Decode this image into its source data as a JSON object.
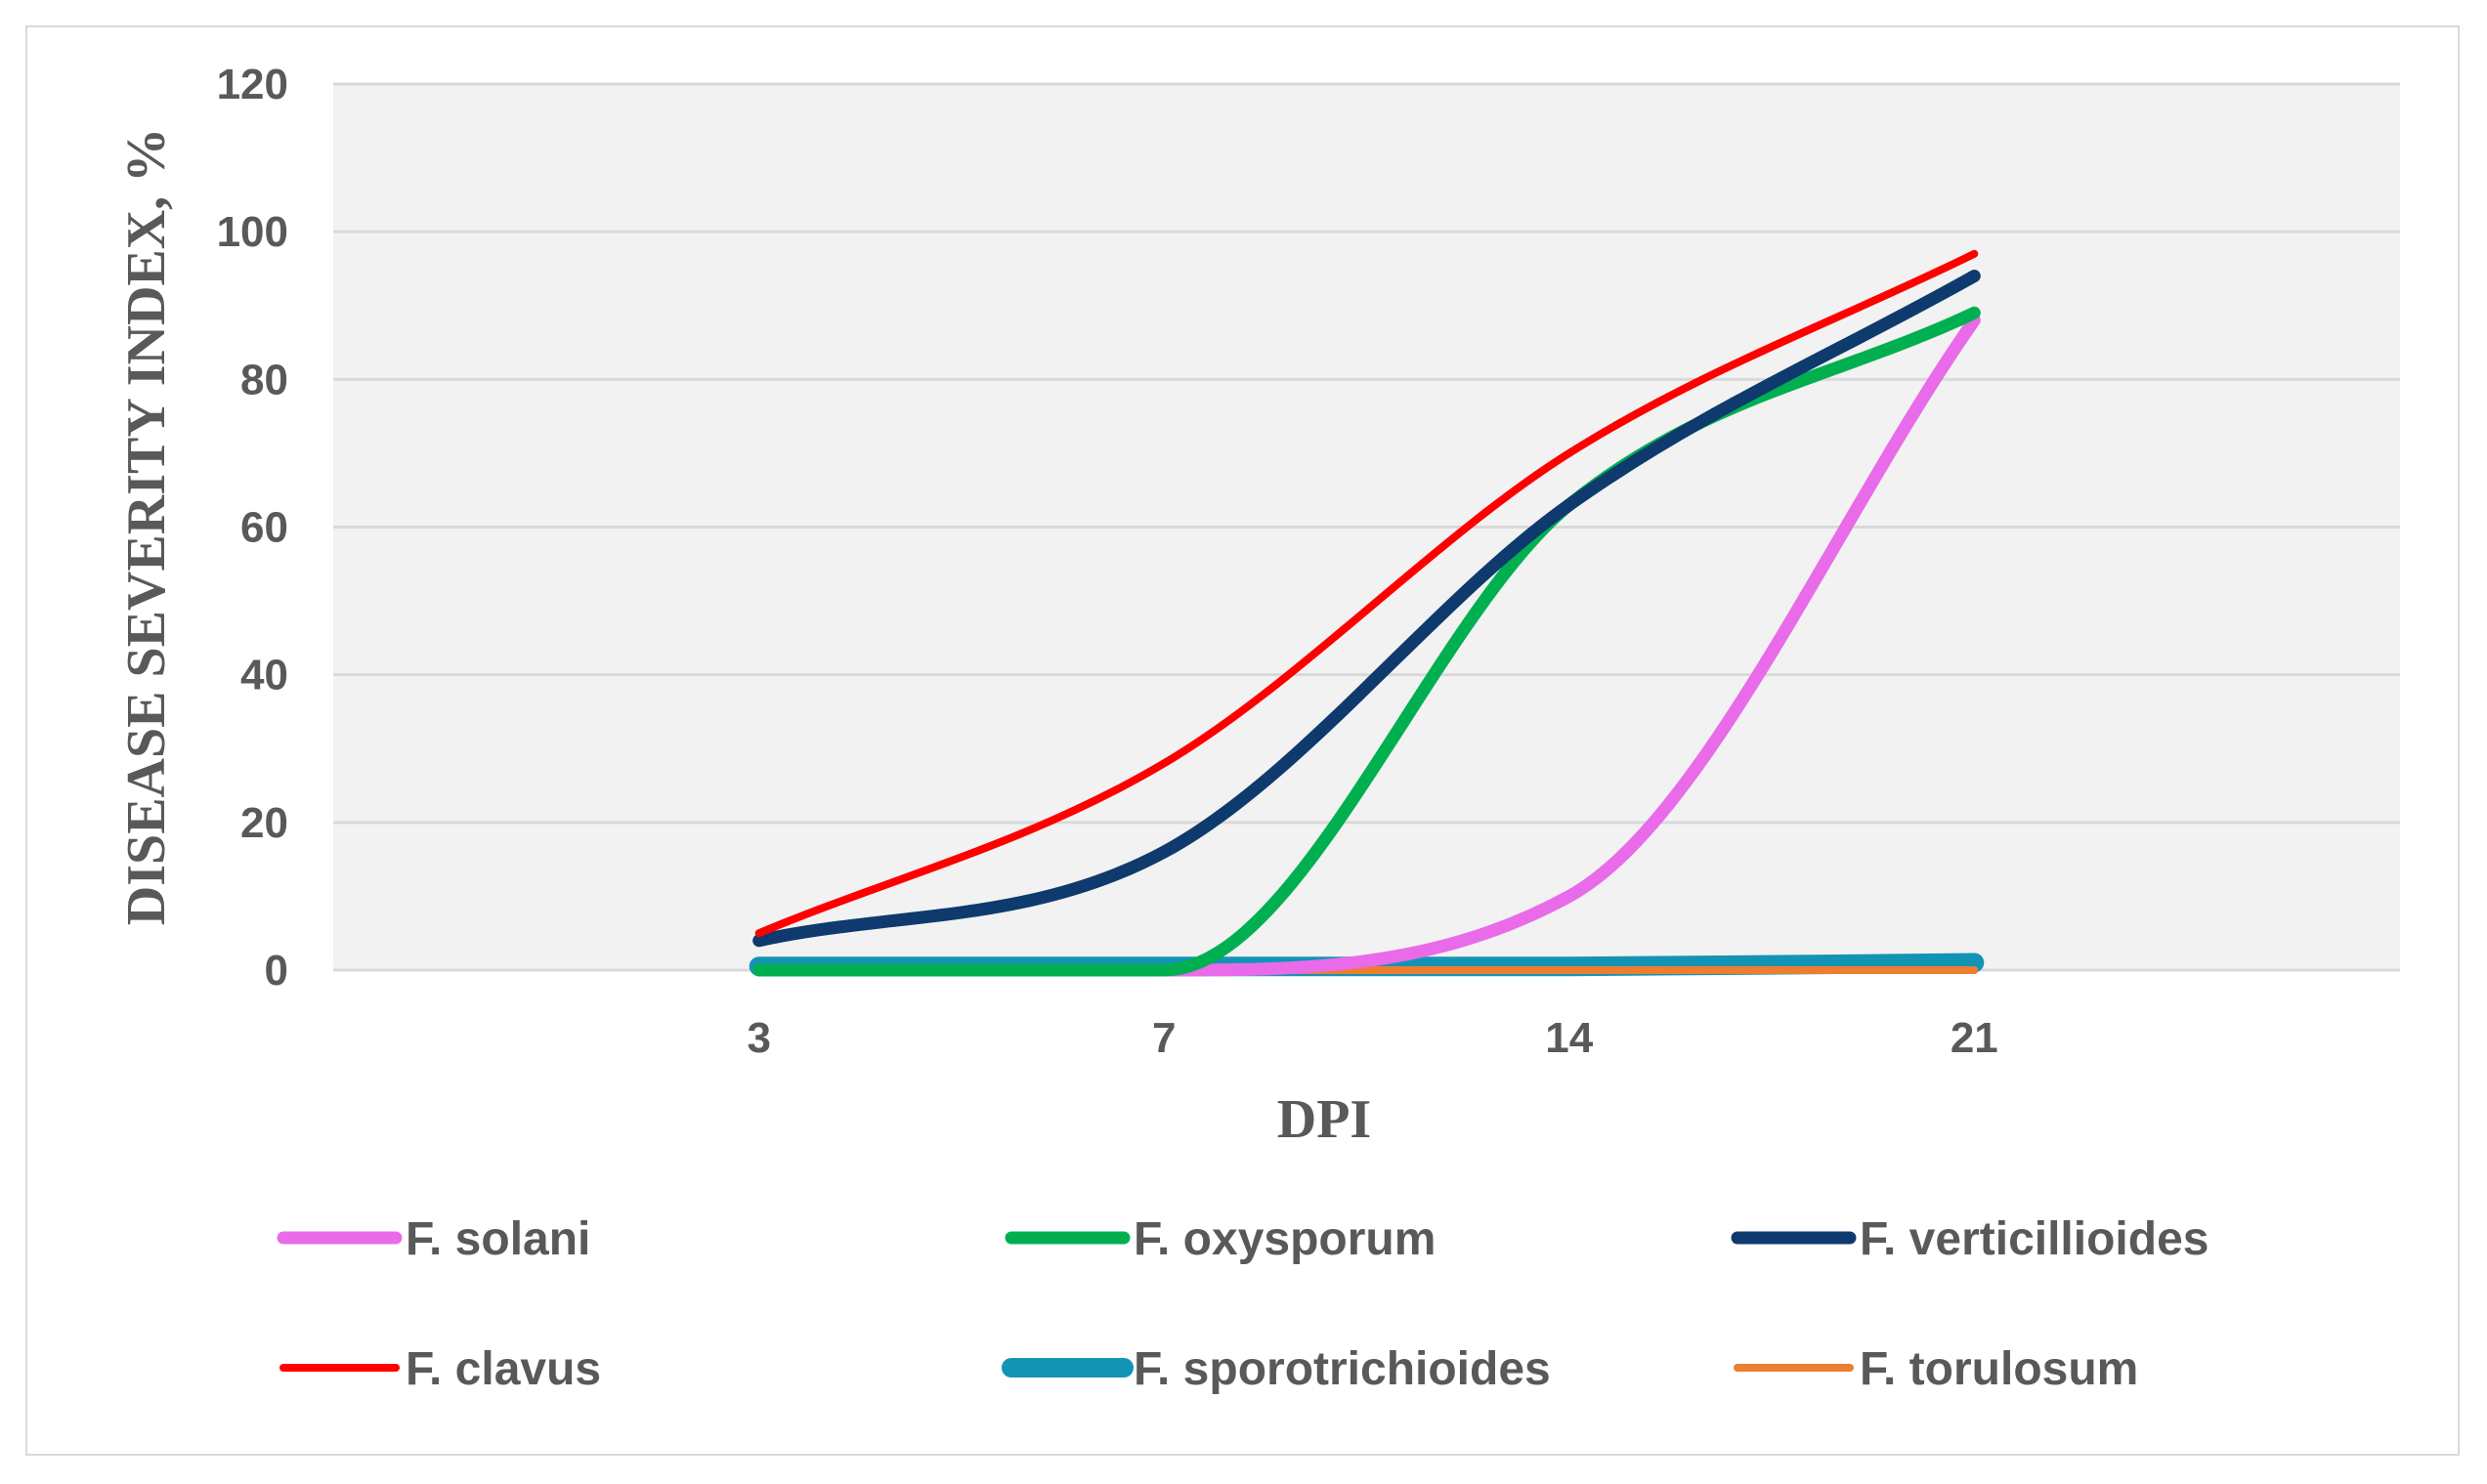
{
  "chart_data": {
    "type": "line",
    "title": "",
    "xlabel": "DPI",
    "ylabel": "DISEASE SEVERITY INDEX, %",
    "categories": [
      "3",
      "7",
      "14",
      "21"
    ],
    "ylim": [
      0,
      120
    ],
    "yticks": [
      "0",
      "20",
      "40",
      "60",
      "80",
      "100",
      "120"
    ],
    "grid": true,
    "smooth": true,
    "legend_position": "bottom",
    "series": [
      {
        "name": "F. solani",
        "color": "#e96be9",
        "values": [
          0,
          0,
          10,
          88
        ]
      },
      {
        "name": "F. oxysporum",
        "color": "#00b050",
        "values": [
          0,
          0,
          63,
          89
        ]
      },
      {
        "name": "F. verticillioides",
        "color": "#0e3a6e",
        "values": [
          4,
          16,
          63,
          94
        ]
      },
      {
        "name": "F. clavus",
        "color": "#ff0000",
        "values": [
          5,
          28,
          70,
          97
        ]
      },
      {
        "name": "F. sporotrichioides",
        "color": "#1494b4",
        "values": [
          0.5,
          0.5,
          0.5,
          1
        ]
      },
      {
        "name": "F. torulosum",
        "color": "#ed7d31",
        "values": [
          0,
          0,
          0,
          0
        ]
      }
    ]
  }
}
